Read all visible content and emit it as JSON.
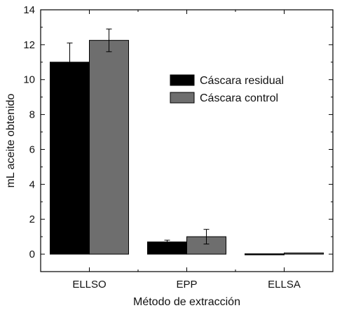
{
  "chart_data": {
    "type": "bar",
    "title": "",
    "xlabel": "Método de extracción",
    "ylabel": "mL aceite obtenido",
    "categories": [
      "ELLSO",
      "EPP",
      "ELLSA"
    ],
    "series": [
      {
        "name": "Cáscara residual",
        "color": "#000000",
        "values": [
          11.0,
          0.7,
          0.02
        ],
        "errors": [
          1.1,
          0.1,
          0.0
        ]
      },
      {
        "name": "Cáscara control",
        "color": "#6e6e6e",
        "values": [
          12.25,
          1.0,
          0.07
        ],
        "errors": [
          0.65,
          0.42,
          0.0
        ]
      }
    ],
    "ylim": [
      -1,
      14
    ],
    "yticks": [
      "0",
      "2",
      "4",
      "6",
      "8",
      "10",
      "12",
      "14"
    ],
    "grid": false,
    "legend_position": "upper-right"
  }
}
